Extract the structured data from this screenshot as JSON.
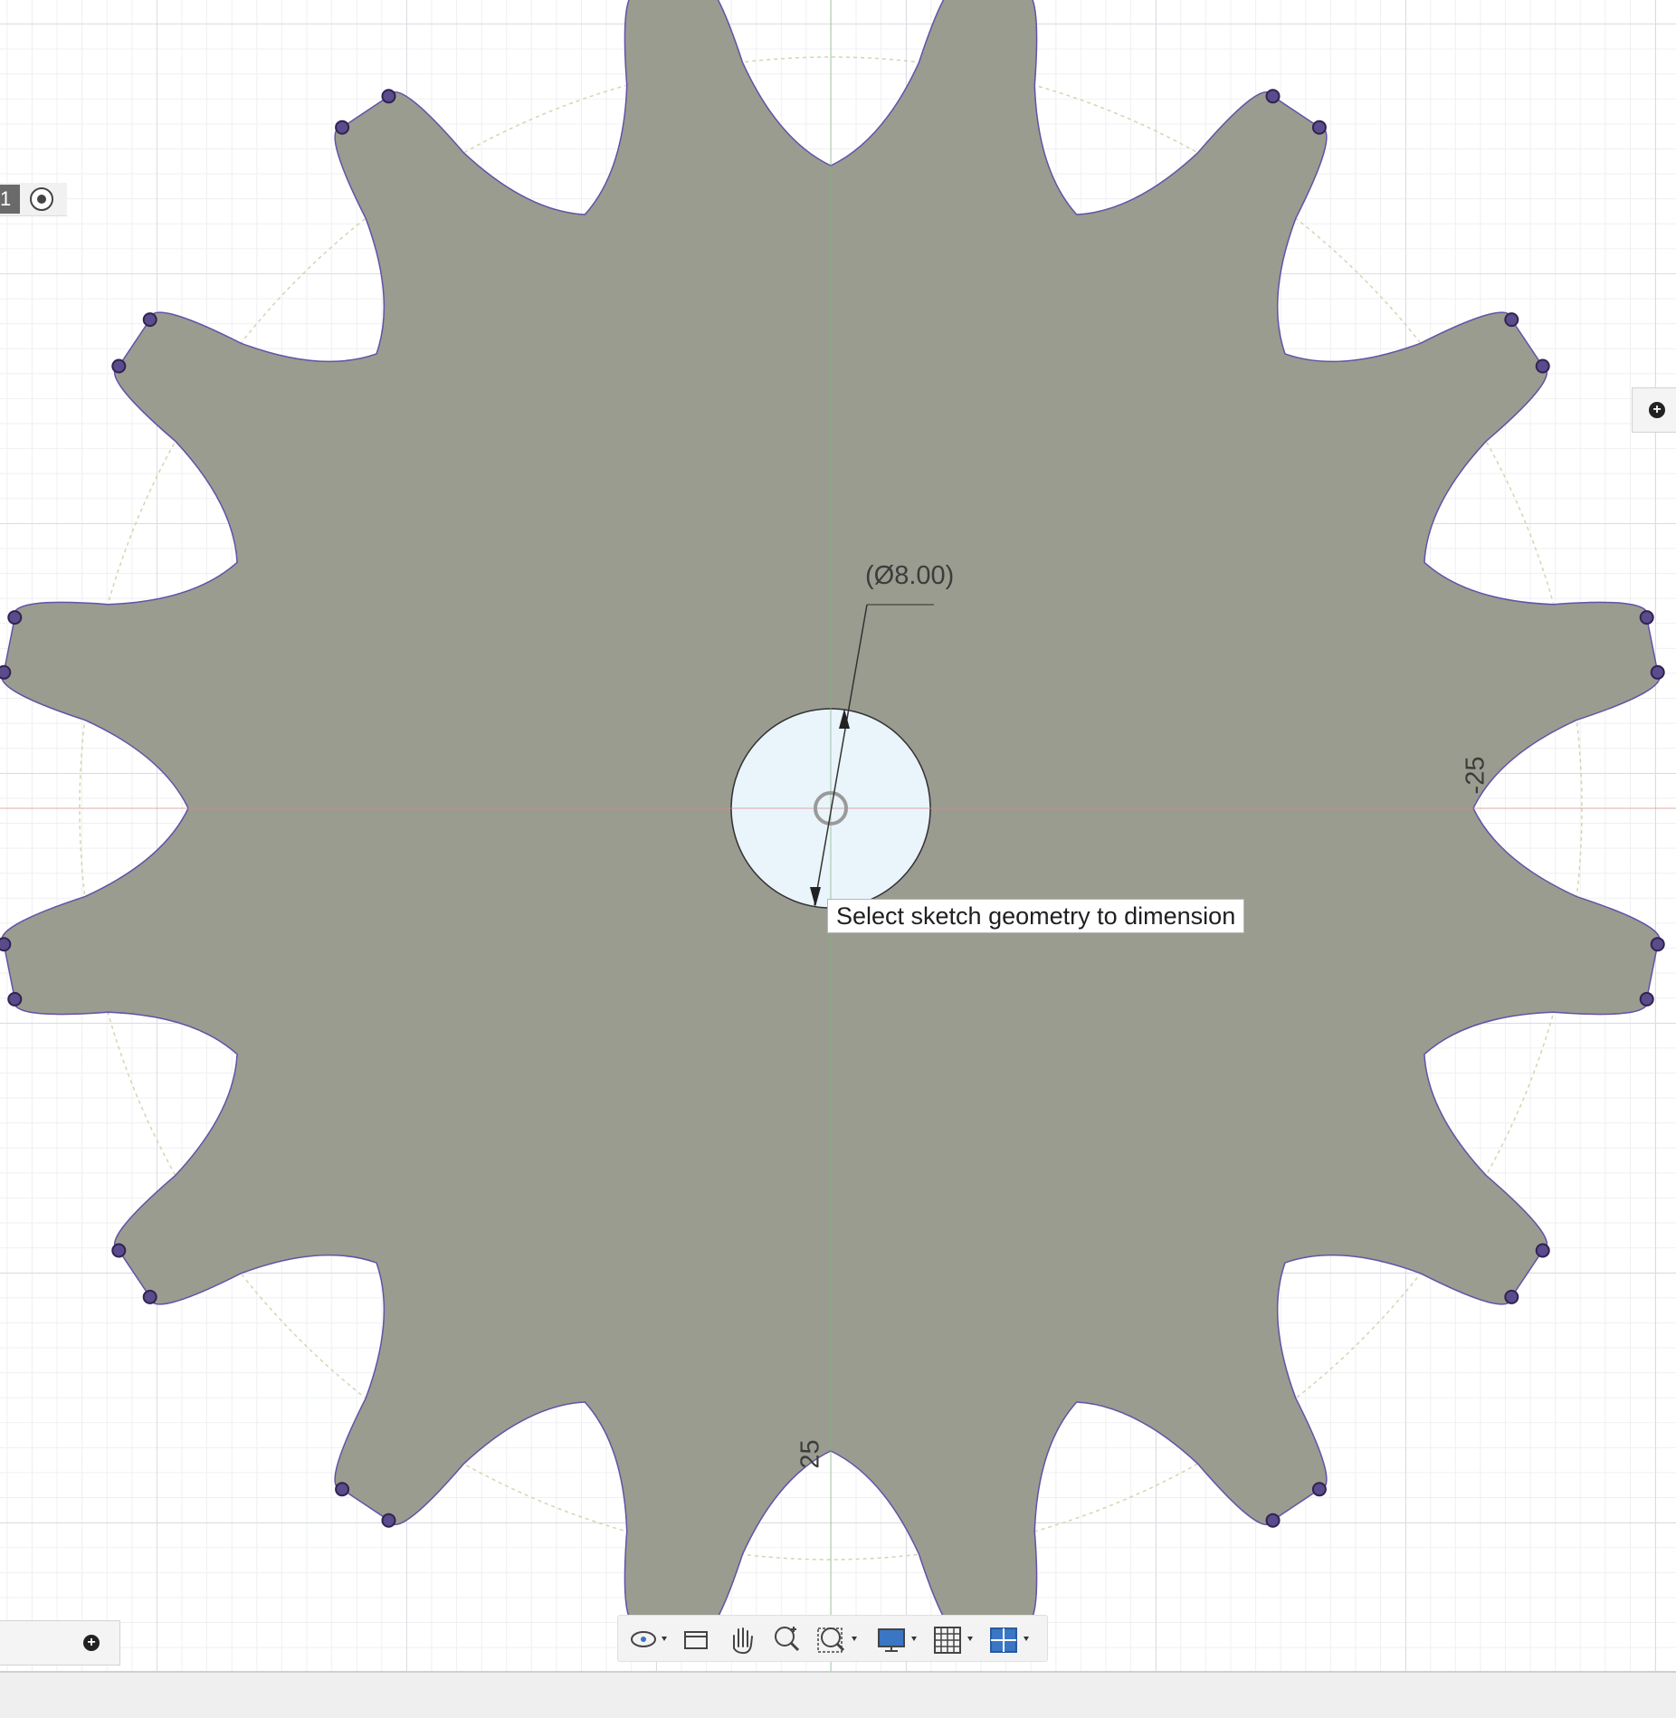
{
  "canvas": {
    "dimension_diameter": "(Ø8.00)",
    "axis_label_vertical": "-25",
    "axis_label_horizontal": "25",
    "tooltip": "Select sketch geometry to dimension",
    "gear_teeth": 16
  },
  "left_panel": {
    "tab_number": "1"
  },
  "colors": {
    "profile_fill": "#9a9c8f",
    "profile_edge": "#6650a8",
    "sketch_point": "#5b4a8c",
    "hole_fill": "#eaf4fb"
  },
  "navigation_toolbar": {
    "items": [
      "orbit-icon",
      "look-at-icon",
      "pan-icon",
      "zoom-icon",
      "fit-icon",
      "display-settings-icon",
      "grid-settings-icon",
      "viewports-icon"
    ]
  }
}
